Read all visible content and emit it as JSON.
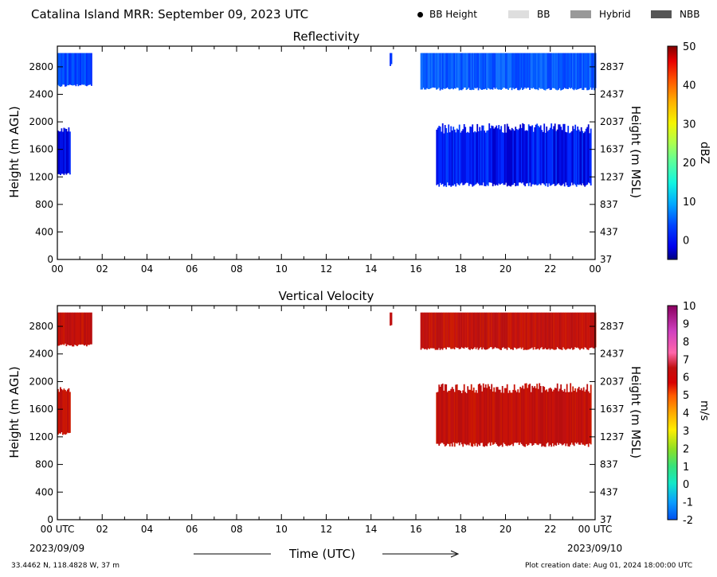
{
  "header": {
    "title": "Catalina Island MRR:  September 09, 2023 UTC",
    "legend": [
      {
        "label": "BB Height",
        "kind": "dot",
        "color": "#000000"
      },
      {
        "label": "BB",
        "kind": "swatch",
        "color": "#dedede"
      },
      {
        "label": "Hybrid",
        "kind": "swatch",
        "color": "#999999"
      },
      {
        "label": "NBB",
        "kind": "swatch",
        "color": "#555555"
      }
    ]
  },
  "chart_data": [
    {
      "type": "heatmap",
      "title": "Reflectivity",
      "ylabel": "Height (m AGL)",
      "ylabel_right": "Height (m MSL)",
      "yticks": [
        "0",
        "400",
        "800",
        "1200",
        "1600",
        "2000",
        "2400",
        "2800"
      ],
      "yticks_right": [
        "37",
        "437",
        "837",
        "1237",
        "1637",
        "2037",
        "2437",
        "2837"
      ],
      "xticks": [
        "00",
        "02",
        "04",
        "06",
        "08",
        "10",
        "12",
        "14",
        "16",
        "18",
        "20",
        "22",
        "00"
      ],
      "xlim_hours": [
        0,
        24
      ],
      "ylim_m": [
        0,
        3100
      ],
      "colorbar": {
        "label": "dBZ",
        "ticks": [
          "50",
          "40",
          "30",
          "20",
          "10",
          "0"
        ],
        "range": [
          -5,
          50
        ]
      },
      "echoes": [
        {
          "t0": 0.0,
          "t1": 1.5,
          "h0": 2550,
          "h1": 3000,
          "value_dbz": 3
        },
        {
          "t0": 0.0,
          "t1": 0.55,
          "h0": 1270,
          "h1": 1920,
          "value_dbz": -1
        },
        {
          "t0": 14.83,
          "t1": 14.9,
          "h0": 2850,
          "h1": 3000,
          "value_dbz": 2
        },
        {
          "t0": 16.2,
          "t1": 24.0,
          "h0": 2500,
          "h1": 3000,
          "value_dbz": 4
        },
        {
          "t0": 16.9,
          "t1": 23.8,
          "h0": 1120,
          "h1": 1980,
          "value_dbz": 0
        }
      ]
    },
    {
      "type": "heatmap",
      "title": "Vertical Velocity",
      "ylabel": "Height (m AGL)",
      "ylabel_right": "Height (m MSL)",
      "yticks": [
        "0",
        "400",
        "800",
        "1200",
        "1600",
        "2000",
        "2400",
        "2800"
      ],
      "yticks_right": [
        "37",
        "437",
        "837",
        "1237",
        "1637",
        "2037",
        "2437",
        "2837"
      ],
      "xticks": [
        "00 UTC",
        "02",
        "04",
        "06",
        "08",
        "10",
        "12",
        "14",
        "16",
        "18",
        "20",
        "22",
        "00 UTC"
      ],
      "xlim_hours": [
        0,
        24
      ],
      "ylim_m": [
        0,
        3100
      ],
      "colorbar": {
        "label": "m/s",
        "ticks": [
          "10",
          "9",
          "8",
          "7",
          "6",
          "5",
          "4",
          "3",
          "2",
          "1",
          "0",
          "-1",
          "-2"
        ],
        "range": [
          -2,
          10
        ]
      },
      "echoes": [
        {
          "t0": 0.0,
          "t1": 1.5,
          "h0": 2550,
          "h1": 3000,
          "value_ms": 5.6
        },
        {
          "t0": 0.0,
          "t1": 0.55,
          "h0": 1270,
          "h1": 1920,
          "value_ms": 5.6
        },
        {
          "t0": 14.83,
          "t1": 14.9,
          "h0": 2850,
          "h1": 3000,
          "value_ms": 5.6
        },
        {
          "t0": 16.2,
          "t1": 24.0,
          "h0": 2500,
          "h1": 3000,
          "value_ms": 5.6
        },
        {
          "t0": 16.9,
          "t1": 23.8,
          "h0": 1120,
          "h1": 1980,
          "value_ms": 5.6
        }
      ]
    }
  ],
  "xaxis": {
    "title": "Time (UTC)",
    "start_date": "2023/09/09",
    "end_date": "2023/09/10"
  },
  "footer": {
    "location": "33.4462 N, 118.4828 W, 37 m",
    "created": "Plot creation date: Aug 01, 2024 18:00:00 UTC"
  }
}
